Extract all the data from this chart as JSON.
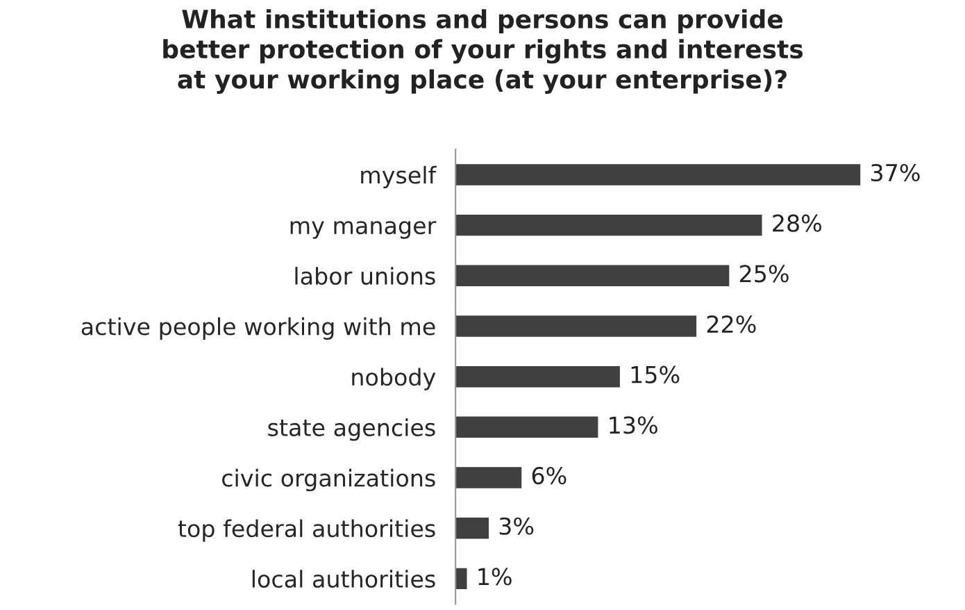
{
  "chart_data": {
    "type": "bar",
    "orientation": "horizontal",
    "title": "What institutions and persons can provide\nbetter protection of your rights and interests\nat your working place (at your enterprise)?",
    "categories": [
      "myself",
      "my manager",
      "labor unions",
      "active people working with me",
      "nobody",
      "state agencies",
      "civic organizations",
      "top federal authorities",
      "local authorities"
    ],
    "values": [
      37,
      28,
      25,
      22,
      15,
      13,
      6,
      3,
      1
    ],
    "value_labels": [
      "37%",
      "28%",
      "25%",
      "22%",
      "15%",
      "13%",
      "6%",
      "3%",
      "1%"
    ],
    "color": "#404040",
    "grid": false,
    "legend": false
  }
}
